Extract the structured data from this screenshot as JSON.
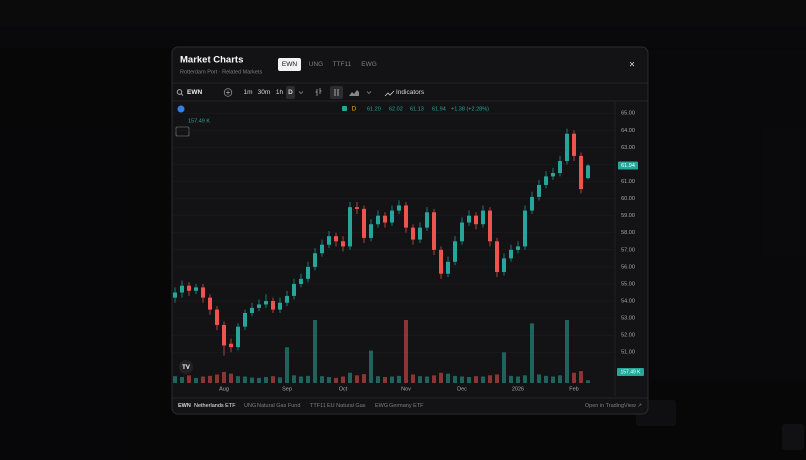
{
  "modal": {
    "title": "Market Charts",
    "subtitle": "Rotterdam Port · Related Markets",
    "tabs": [
      "EWN",
      "UNG",
      "TTF11",
      "EWG"
    ],
    "close": "×"
  },
  "toolbar": {
    "symbol": "EWN",
    "intervals": [
      "1m",
      "30m",
      "1h",
      "D"
    ],
    "indicators": "Indicators"
  },
  "footer": {
    "items": [
      {
        "symbol": "EWN",
        "name": "Netherlands ETF"
      },
      {
        "symbol": "UNG",
        "name": "Natural Gas Fund"
      },
      {
        "symbol": "TTF11",
        "name": "EU Natural Gas"
      },
      {
        "symbol": "EWG",
        "name": "Germany ETF"
      }
    ],
    "link": "Open in TradingView ↗"
  },
  "chart_data": {
    "type": "candlestick",
    "interval": "D",
    "legend": {
      "values": [
        "61.20",
        "62.02",
        "61.13",
        "61.94"
      ],
      "change": "+1.38 (+2.28%)"
    },
    "categories": [
      null,
      null,
      null,
      null,
      null,
      null,
      null,
      "Aug",
      null,
      null,
      null,
      null,
      null,
      null,
      null,
      null,
      "Sep",
      null,
      null,
      null,
      null,
      null,
      null,
      null,
      "Oct",
      null,
      null,
      null,
      null,
      null,
      null,
      null,
      null,
      "Nov",
      null,
      null,
      null,
      null,
      null,
      null,
      null,
      "Dec",
      null,
      null,
      null,
      null,
      null,
      null,
      null,
      "2026",
      null,
      null,
      null,
      null,
      null,
      null,
      null,
      "Feb",
      null,
      null
    ],
    "open": [
      54.2,
      54.5,
      54.9,
      54.6,
      54.8,
      54.2,
      53.5,
      52.6,
      51.5,
      51.3,
      52.5,
      53.3,
      53.6,
      53.8,
      54.0,
      53.5,
      53.9,
      54.3,
      55.0,
      55.3,
      56.0,
      56.8,
      57.3,
      57.8,
      57.5,
      57.2,
      59.5,
      59.4,
      57.7,
      58.5,
      59.0,
      58.6,
      59.3,
      59.6,
      58.3,
      57.6,
      58.3,
      59.2,
      57.0,
      55.6,
      56.3,
      57.5,
      58.6,
      59.0,
      58.5,
      59.3,
      57.5,
      55.7,
      56.5,
      57.0,
      57.2,
      59.3,
      60.1,
      60.8,
      61.3,
      61.5,
      62.2,
      63.8,
      62.5,
      61.2
    ],
    "high": [
      54.8,
      55.2,
      55.1,
      55.0,
      55.0,
      54.4,
      53.7,
      52.8,
      51.8,
      52.7,
      53.5,
      53.9,
      54.1,
      54.4,
      54.2,
      54.2,
      54.6,
      55.3,
      55.6,
      56.3,
      57.1,
      57.6,
      58.1,
      58.0,
      57.8,
      59.8,
      59.8,
      59.6,
      58.8,
      59.3,
      59.2,
      59.6,
      59.9,
      59.8,
      58.5,
      58.6,
      59.5,
      59.4,
      57.2,
      56.6,
      57.8,
      58.9,
      59.3,
      59.2,
      59.6,
      59.5,
      57.7,
      56.8,
      57.3,
      57.5,
      59.6,
      60.4,
      61.1,
      61.6,
      61.8,
      62.5,
      64.1,
      64.0,
      62.7,
      62.02
    ],
    "low": [
      53.9,
      54.2,
      54.3,
      54.4,
      53.9,
      53.2,
      52.3,
      50.8,
      51.0,
      51.1,
      52.3,
      53.1,
      53.4,
      53.6,
      53.3,
      53.3,
      53.7,
      54.1,
      54.8,
      55.1,
      55.8,
      56.6,
      57.1,
      57.2,
      56.9,
      57.0,
      59.1,
      57.4,
      57.5,
      58.3,
      58.3,
      58.4,
      59.1,
      58.0,
      57.3,
      57.4,
      58.1,
      56.7,
      55.3,
      55.4,
      56.1,
      57.3,
      58.4,
      58.2,
      58.3,
      57.2,
      55.4,
      55.5,
      56.3,
      56.8,
      57.0,
      59.1,
      59.9,
      60.6,
      61.1,
      61.3,
      62.0,
      62.2,
      60.3,
      61.13
    ],
    "close": [
      54.5,
      54.9,
      54.6,
      54.8,
      54.2,
      53.5,
      52.6,
      51.4,
      51.3,
      52.5,
      53.3,
      53.6,
      53.8,
      54.0,
      53.5,
      53.9,
      54.3,
      55.0,
      55.3,
      56.0,
      56.8,
      57.3,
      57.8,
      57.5,
      57.2,
      59.5,
      59.4,
      57.7,
      58.5,
      59.0,
      58.6,
      59.3,
      59.6,
      58.3,
      57.6,
      58.3,
      59.2,
      57.0,
      55.6,
      56.3,
      57.5,
      58.6,
      59.0,
      58.5,
      59.3,
      57.5,
      55.7,
      56.5,
      57.0,
      57.2,
      59.3,
      60.1,
      60.8,
      61.3,
      61.5,
      62.2,
      63.8,
      62.5,
      60.56,
      61.94
    ],
    "volume": [
      400000,
      350000,
      450000,
      300000,
      380000,
      420000,
      500000,
      650000,
      550000,
      400000,
      380000,
      320000,
      300000,
      350000,
      400000,
      330000,
      2100000,
      450000,
      380000,
      420000,
      3700000,
      400000,
      350000,
      300000,
      380000,
      600000,
      450000,
      520000,
      1900000,
      400000,
      350000,
      380000,
      420000,
      3700000,
      500000,
      400000,
      380000,
      450000,
      600000,
      550000,
      420000,
      380000,
      350000,
      400000,
      380000,
      450000,
      500000,
      1800000,
      420000,
      380000,
      450000,
      3500000,
      500000,
      420000,
      380000,
      450000,
      3700000,
      600000,
      700000,
      157490
    ],
    "volume_label": "157.49 K",
    "up_color": "#26a69a",
    "down_color": "#ef5350",
    "ylim": [
      49.2,
      65.6
    ],
    "yticks": [
      {
        "value": 51,
        "label": "51.00"
      },
      {
        "value": 52,
        "label": "52.00"
      },
      {
        "value": 53,
        "label": "53.00"
      },
      {
        "value": 54,
        "label": "54.00"
      },
      {
        "value": 55,
        "label": "55.00"
      },
      {
        "value": 56,
        "label": "56.00"
      },
      {
        "value": 57,
        "label": "57.00"
      },
      {
        "value": 58,
        "label": "58.00"
      },
      {
        "value": 59,
        "label": "59.00"
      },
      {
        "value": 60,
        "label": "60.00"
      },
      {
        "value": 61,
        "label": "61.00"
      },
      {
        "value": 62,
        "label": "62.00"
      },
      {
        "value": 63,
        "label": "63.00"
      },
      {
        "value": 64,
        "label": "64.00"
      },
      {
        "value": 65,
        "label": "65.00"
      }
    ],
    "grid": true
  }
}
